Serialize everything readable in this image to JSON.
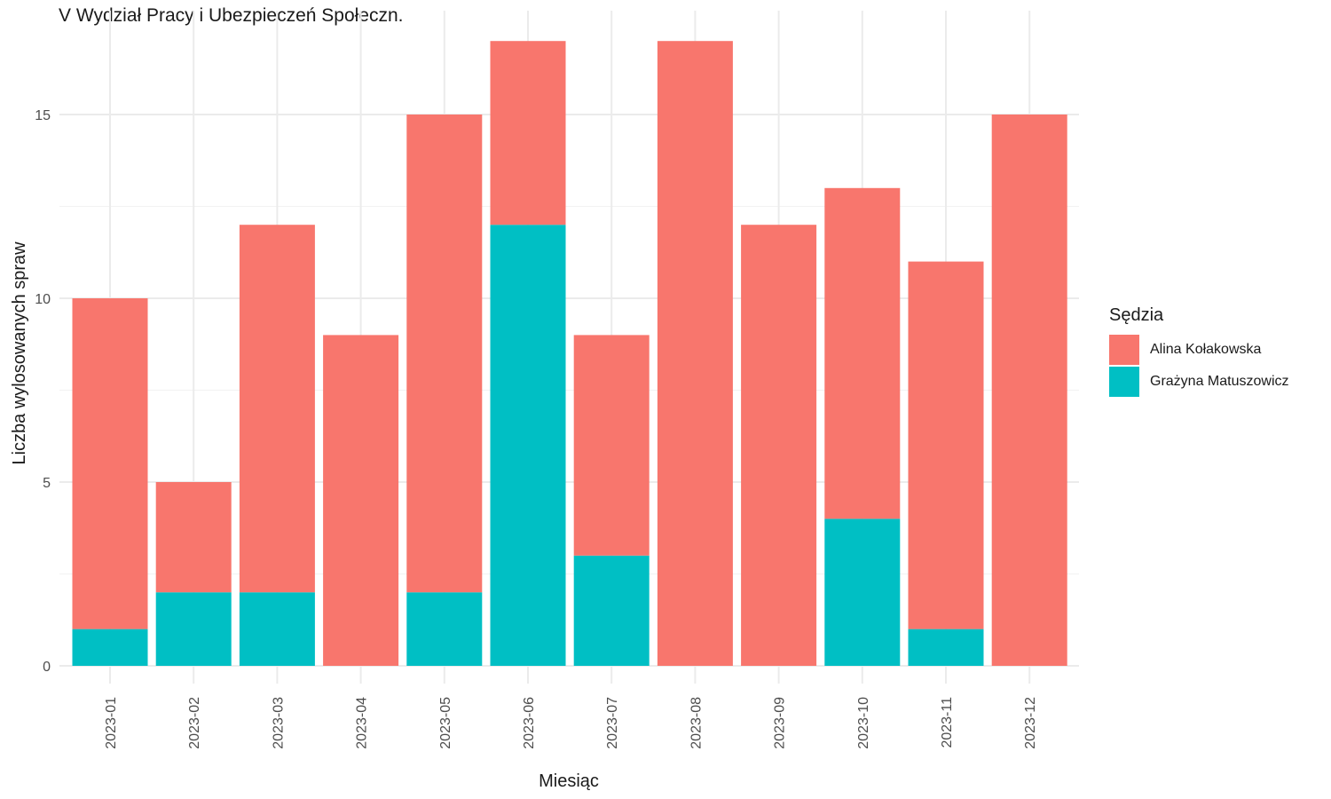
{
  "chart_data": {
    "type": "bar",
    "stacked": true,
    "title": "V Wydział Pracy i Ubezpieczeń Społeczn.",
    "xlabel": "Miesiąc",
    "ylabel": "Liczba wylosowanych spraw",
    "categories": [
      "2023-01",
      "2023-02",
      "2023-03",
      "2023-04",
      "2023-05",
      "2023-06",
      "2023-07",
      "2023-08",
      "2023-09",
      "2023-10",
      "2023-11",
      "2023-12"
    ],
    "yticks": [
      0,
      5,
      10,
      15
    ],
    "ylim": [
      0,
      17
    ],
    "grid": true,
    "legend": {
      "title": "Sędzia",
      "placement": "right"
    },
    "series": [
      {
        "name": "Grażyna Matuszowicz",
        "color": "#00BFC4",
        "values": [
          1,
          2,
          2,
          0,
          2,
          12,
          3,
          0,
          0,
          4,
          1,
          0
        ]
      },
      {
        "name": "Alina Kołakowska",
        "color": "#F8766D",
        "values": [
          9,
          3,
          10,
          9,
          13,
          5,
          6,
          17,
          12,
          9,
          10,
          15
        ]
      }
    ]
  },
  "legend_items": [
    {
      "label": "Alina Kołakowska",
      "color": "#F8766D"
    },
    {
      "label": "Grażyna Matuszowicz",
      "color": "#00BFC4"
    }
  ]
}
